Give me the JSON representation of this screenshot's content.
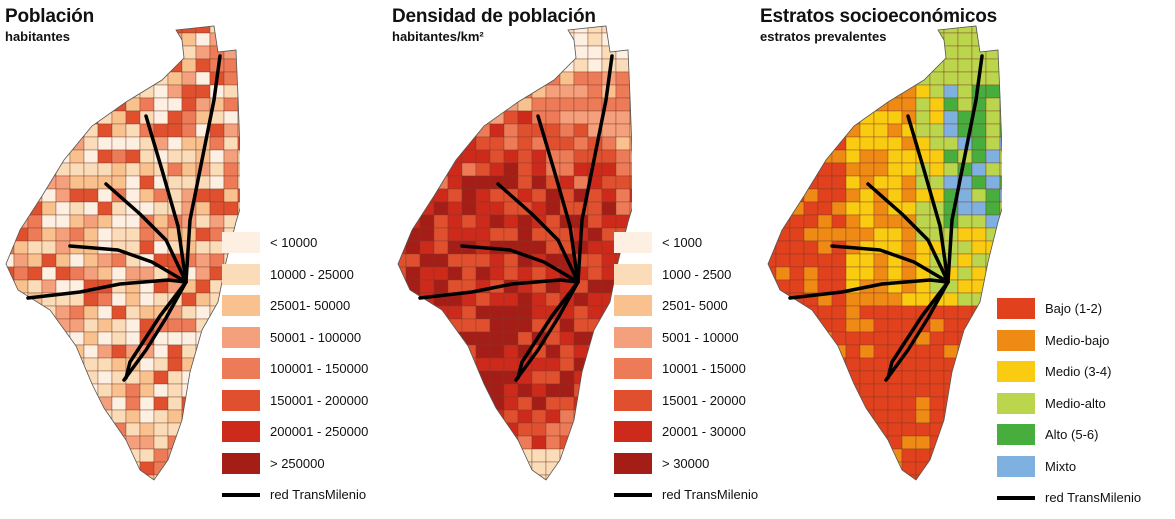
{
  "panels": [
    {
      "title": "Población",
      "subtitle": "habitantes",
      "colors": [
        "#fdf0e2",
        "#fbdcb9",
        "#f8c18e",
        "#f4a07c",
        "#ed7b57",
        "#e0502f",
        "#cd2a1c",
        "#a51d17"
      ],
      "legend": [
        "< 10000",
        "10000 - 25000",
        "25001- 50000",
        "50001 - 100000",
        "100001 - 150000",
        "150001 - 200000",
        "200001 - 250000",
        "> 250000"
      ],
      "network_label": "red TransMilenio"
    },
    {
      "title": "Densidad de población",
      "subtitle": "habitantes/km²",
      "colors": [
        "#fdf0e2",
        "#fbdcb9",
        "#f8c18e",
        "#f4a07c",
        "#ed7b57",
        "#e0502f",
        "#cd2a1c",
        "#a51d17"
      ],
      "legend": [
        "< 1000",
        "1000 - 2500",
        "2501- 5000",
        "5001 - 10000",
        "10001 - 15000",
        "15001 - 20000",
        "20001 - 30000",
        "> 30000"
      ],
      "network_label": "red TransMilenio"
    },
    {
      "title": "Estratos socioeconómicos",
      "subtitle": "estratos prevalentes",
      "colors": [
        "#e2411d",
        "#ef8b14",
        "#f9cc12",
        "#bbd64c",
        "#47ad3c",
        "#7fb1e0"
      ],
      "legend": [
        "Bajo (1-2)",
        "Medio-bajo",
        "Medio (3-4)",
        "Medio-alto",
        "Alto (5-6)",
        "Mixto"
      ],
      "network_label": "red TransMilenio"
    }
  ]
}
